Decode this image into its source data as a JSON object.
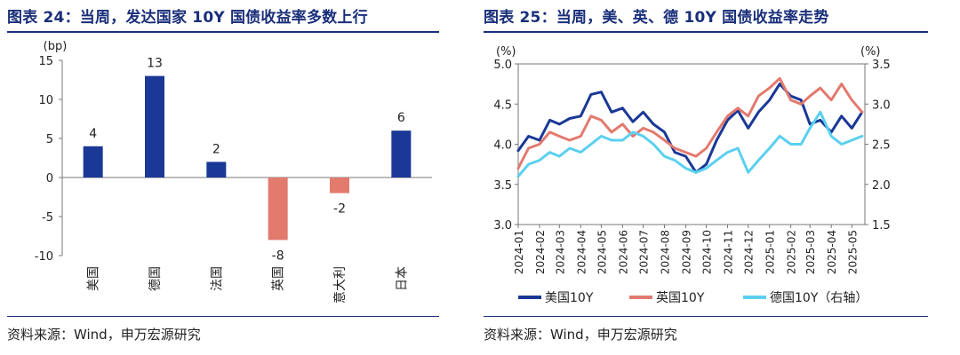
{
  "chart_data": [
    {
      "type": "bar",
      "title": "图表 24：当周，发达国家 10Y 国债收益率多数上行",
      "unit": "(bp)",
      "categories": [
        "美国",
        "德国",
        "法国",
        "英国",
        "意大利",
        "日本"
      ],
      "values": [
        4,
        13,
        2,
        -8,
        -2,
        6
      ],
      "data_labels": [
        "4",
        "13",
        "2",
        "-8",
        "-2",
        "6"
      ],
      "ylim": [
        -10,
        15
      ],
      "yticks": [
        15,
        10,
        5,
        0,
        -5,
        -10
      ],
      "ytick_labels": [
        "15",
        "10",
        "5",
        "0",
        "-5",
        "-10"
      ],
      "colors": {
        "positive": "#1a3896",
        "negative": "#e27a6e"
      },
      "grid": false,
      "source": "资料来源：Wind，申万宏源研究"
    },
    {
      "type": "line",
      "title": "图表 25：当周，美、英、德 10Y 国债收益率走势",
      "left_unit": "(%)",
      "right_unit": "(%)",
      "ylim_left": [
        3.0,
        5.0
      ],
      "ylim_right": [
        1.5,
        3.5
      ],
      "yticks_left_labels": [
        "5.0",
        "4.5",
        "4.0",
        "3.5",
        "3.0"
      ],
      "yticks_right_labels": [
        "3.5",
        "3.0",
        "2.5",
        "2.0",
        "1.5"
      ],
      "x_labels": [
        "2024-01",
        "2024-02",
        "2024-03",
        "2024-04",
        "2024-05",
        "2024-06",
        "2024-07",
        "2024-08",
        "2024-09",
        "2024-10",
        "2024-11",
        "2024-12",
        "2025-01",
        "2025-02",
        "2025-03",
        "2025-04",
        "2025-05"
      ],
      "x": [
        "2024-01-01",
        "2024-01-16",
        "2024-02-01",
        "2024-02-16",
        "2024-03-01",
        "2024-03-16",
        "2024-04-01",
        "2024-04-16",
        "2024-05-01",
        "2024-05-16",
        "2024-06-01",
        "2024-06-16",
        "2024-07-01",
        "2024-07-16",
        "2024-08-01",
        "2024-08-16",
        "2024-09-01",
        "2024-09-16",
        "2024-10-01",
        "2024-10-16",
        "2024-11-01",
        "2024-11-16",
        "2024-12-01",
        "2024-12-16",
        "2025-01-01",
        "2025-01-16",
        "2025-02-01",
        "2025-02-16",
        "2025-03-01",
        "2025-03-16",
        "2025-04-01",
        "2025-04-16",
        "2025-05-01",
        "2025-05-16"
      ],
      "series": [
        {
          "name": "美国10Y",
          "axis": "left",
          "color": "#1a3896",
          "values": [
            3.92,
            4.1,
            4.05,
            4.3,
            4.25,
            4.32,
            4.35,
            4.62,
            4.65,
            4.4,
            4.45,
            4.28,
            4.4,
            4.25,
            4.15,
            3.9,
            3.85,
            3.65,
            3.75,
            4.05,
            4.3,
            4.42,
            4.2,
            4.4,
            4.55,
            4.75,
            4.6,
            4.55,
            4.25,
            4.3,
            4.15,
            4.35,
            4.2,
            4.4
          ]
        },
        {
          "name": "英国10Y",
          "axis": "left",
          "color": "#e27a6e",
          "values": [
            3.7,
            3.95,
            4.0,
            4.15,
            4.1,
            4.05,
            4.1,
            4.35,
            4.3,
            4.15,
            4.25,
            4.1,
            4.2,
            4.15,
            4.05,
            3.95,
            3.9,
            3.85,
            3.95,
            4.15,
            4.35,
            4.45,
            4.35,
            4.6,
            4.7,
            4.82,
            4.55,
            4.5,
            4.6,
            4.7,
            4.55,
            4.75,
            4.55,
            4.4
          ]
        },
        {
          "name": "德国10Y（右轴）",
          "axis": "right",
          "color": "#5bd0f0",
          "values": [
            2.1,
            2.25,
            2.3,
            2.4,
            2.35,
            2.45,
            2.4,
            2.5,
            2.6,
            2.55,
            2.55,
            2.65,
            2.6,
            2.5,
            2.35,
            2.3,
            2.2,
            2.15,
            2.2,
            2.3,
            2.4,
            2.45,
            2.15,
            2.3,
            2.45,
            2.6,
            2.5,
            2.5,
            2.7,
            2.9,
            2.6,
            2.5,
            2.55,
            2.6
          ]
        }
      ],
      "legend": {
        "placement": "bottom",
        "labels": [
          "美国10Y",
          "英国10Y",
          "德国10Y（右轴）"
        ]
      },
      "grid": false,
      "source": "资料来源：Wind，申万宏源研究"
    }
  ]
}
